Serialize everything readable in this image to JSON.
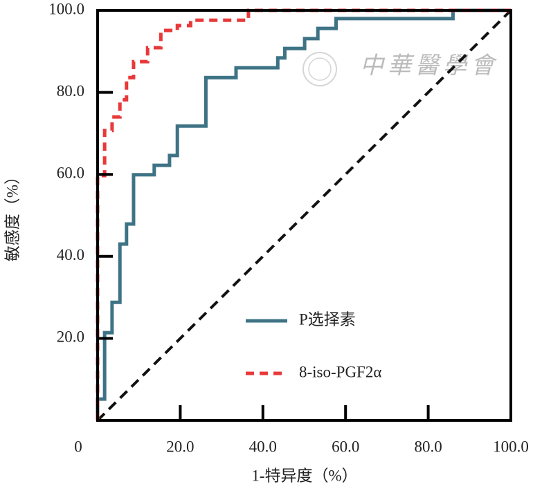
{
  "chart_data": {
    "type": "step-line",
    "x_label": "1-特异度（%）",
    "y_label": "敏感度（%）",
    "watermark": "中華醫學會",
    "xlim": [
      0,
      100
    ],
    "ylim": [
      0,
      100
    ],
    "xticks": [
      0,
      {
        "value": 20,
        "label": "20.0"
      },
      {
        "value": 40,
        "label": "40.0"
      },
      {
        "value": 60,
        "label": "60.0"
      },
      {
        "value": 80,
        "label": "80.0"
      },
      {
        "value": 100,
        "label": "100.0"
      }
    ],
    "yticks": [
      {
        "value": 20,
        "label": "20.0"
      },
      {
        "value": 40,
        "label": "40.0"
      },
      {
        "value": 60,
        "label": "60.0"
      },
      {
        "value": 80,
        "label": "80.0"
      },
      {
        "value": 100,
        "label": "100.0"
      }
    ],
    "legend": "lower right",
    "diagonal": {
      "x": [
        0,
        100
      ],
      "values": [
        0,
        100
      ],
      "color": "#111111"
    },
    "series": [
      {
        "name": "P选择素",
        "color": "#3e7385",
        "dash": false,
        "x": [
          0,
          0,
          1.7,
          1.7,
          3.5,
          3.5,
          5.4,
          5.4,
          7.0,
          7.0,
          8.7,
          8.7,
          13.7,
          13.7,
          17.4,
          17.4,
          19.3,
          19.3,
          26.2,
          26.2,
          33.5,
          33.5,
          43.6,
          43.6,
          45.3,
          45.3,
          50.1,
          50.1,
          53.3,
          53.3,
          57.7,
          57.7,
          86.0,
          86.0,
          100
        ],
        "values": [
          0,
          5.2,
          5.2,
          21.4,
          21.4,
          28.8,
          28.8,
          43.0,
          43.0,
          47.9,
          47.9,
          59.9,
          59.9,
          62.2,
          62.2,
          64.6,
          64.6,
          71.8,
          71.8,
          83.6,
          83.6,
          86.0,
          86.0,
          88.4,
          88.4,
          90.7,
          90.7,
          93.1,
          93.1,
          95.6,
          95.6,
          98.0,
          98.0,
          100,
          100
        ]
      },
      {
        "name": "8-iso-PGF2α",
        "color": "#e8393a",
        "dash": true,
        "x": [
          0,
          0,
          1.7,
          1.7,
          3.5,
          3.5,
          5.4,
          5.4,
          7.0,
          7.0,
          8.7,
          8.7,
          12.1,
          12.1,
          15.3,
          15.3,
          19.3,
          19.3,
          22.5,
          22.5,
          36.5,
          36.5,
          100
        ],
        "values": [
          0,
          59.7,
          59.7,
          70.7,
          70.7,
          74.0,
          74.0,
          78.2,
          78.2,
          83.6,
          83.6,
          87.5,
          87.5,
          90.9,
          90.9,
          95.1,
          95.1,
          96.3,
          96.3,
          97.6,
          97.6,
          100,
          100
        ]
      }
    ]
  }
}
